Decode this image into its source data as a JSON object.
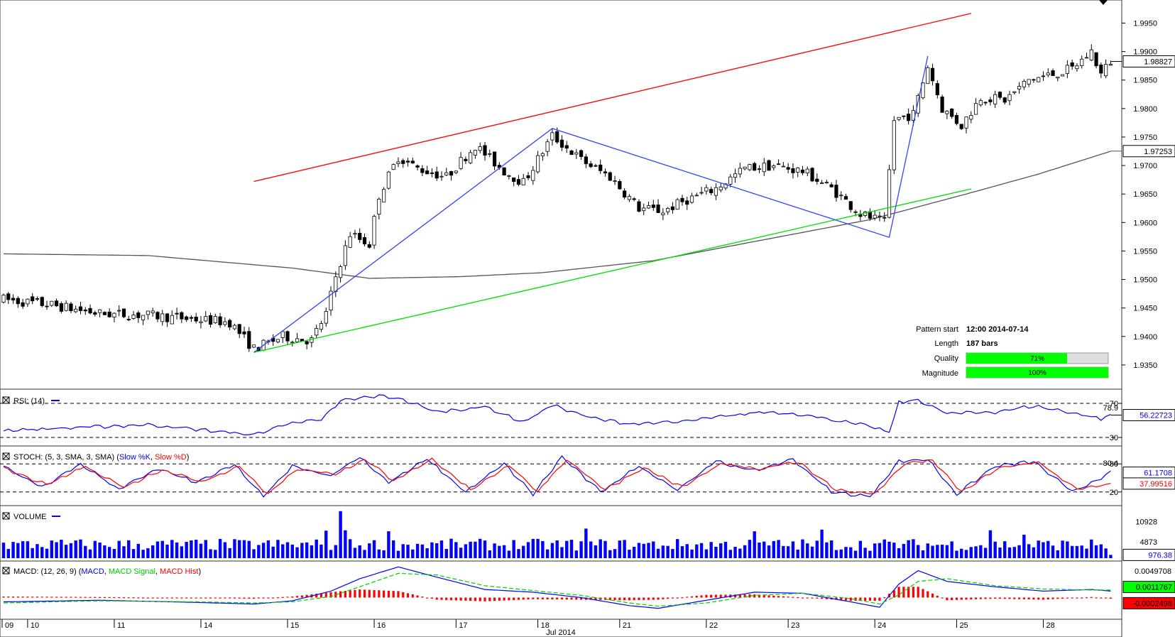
{
  "chart_data": [
    {
      "type": "candlestick",
      "panel": "price",
      "y_ticks": [
        "1.9950",
        "1.9900",
        "1.9850",
        "1.9800",
        "1.9750",
        "1.9700",
        "1.9650",
        "1.9600",
        "1.9550",
        "1.9500",
        "1.9450",
        "1.9400",
        "1.9350"
      ],
      "ylim": [
        1.9315,
        1.9983
      ],
      "last_price": "1.98827",
      "ma_value": "1.97253",
      "channel": {
        "resistance": {
          "from": {
            "bar": 52,
            "price": 1.9672
          },
          "to": {
            "bar": 187,
            "price": 1.996
          },
          "color": "#ff0000"
        },
        "support": {
          "from": {
            "bar": 52,
            "price": 1.9372
          },
          "to": {
            "bar": 187,
            "price": 1.9652
          },
          "color": "#00dd00"
        }
      },
      "zigzag": [
        {
          "bar": 52,
          "price": 1.9372
        },
        {
          "bar": 114,
          "price": 1.9765
        },
        {
          "bar": 184,
          "price": 1.9574
        },
        {
          "bar": 192,
          "price": 1.9892
        }
      ],
      "ma_path": [
        {
          "bar": 0,
          "price": 1.9545
        },
        {
          "bar": 30,
          "price": 1.9542
        },
        {
          "bar": 60,
          "price": 1.952
        },
        {
          "bar": 76,
          "price": 1.9502
        },
        {
          "bar": 95,
          "price": 1.9505
        },
        {
          "bar": 112,
          "price": 1.9512
        },
        {
          "bar": 135,
          "price": 1.9533
        },
        {
          "bar": 160,
          "price": 1.9573
        },
        {
          "bar": 180,
          "price": 1.9605
        },
        {
          "bar": 200,
          "price": 1.965
        },
        {
          "bar": 215,
          "price": 1.9685
        },
        {
          "bar": 230,
          "price": 1.9725
        }
      ],
      "price_path": [
        {
          "bar": 0,
          "price": 1.9465
        },
        {
          "bar": 10,
          "price": 1.9455
        },
        {
          "bar": 20,
          "price": 1.944
        },
        {
          "bar": 30,
          "price": 1.9437
        },
        {
          "bar": 40,
          "price": 1.943
        },
        {
          "bar": 47,
          "price": 1.9425
        },
        {
          "bar": 52,
          "price": 1.9378
        },
        {
          "bar": 58,
          "price": 1.94
        },
        {
          "bar": 64,
          "price": 1.9393
        },
        {
          "bar": 67,
          "price": 1.944
        },
        {
          "bar": 69,
          "price": 1.9505
        },
        {
          "bar": 72,
          "price": 1.958
        },
        {
          "bar": 76,
          "price": 1.9562
        },
        {
          "bar": 78,
          "price": 1.9648
        },
        {
          "bar": 82,
          "price": 1.9715
        },
        {
          "bar": 86,
          "price": 1.9695
        },
        {
          "bar": 92,
          "price": 1.968
        },
        {
          "bar": 98,
          "price": 1.9735
        },
        {
          "bar": 104,
          "price": 1.969
        },
        {
          "bar": 108,
          "price": 1.967
        },
        {
          "bar": 114,
          "price": 1.9752
        },
        {
          "bar": 120,
          "price": 1.971
        },
        {
          "bar": 126,
          "price": 1.968
        },
        {
          "bar": 132,
          "price": 1.9625
        },
        {
          "bar": 137,
          "price": 1.962
        },
        {
          "bar": 142,
          "price": 1.964
        },
        {
          "bar": 148,
          "price": 1.966
        },
        {
          "bar": 154,
          "price": 1.9695
        },
        {
          "bar": 160,
          "price": 1.97
        },
        {
          "bar": 166,
          "price": 1.969
        },
        {
          "bar": 172,
          "price": 1.966
        },
        {
          "bar": 178,
          "price": 1.9615
        },
        {
          "bar": 183,
          "price": 1.96
        },
        {
          "bar": 185,
          "price": 1.978
        },
        {
          "bar": 189,
          "price": 1.979
        },
        {
          "bar": 192,
          "price": 1.9875
        },
        {
          "bar": 195,
          "price": 1.98
        },
        {
          "bar": 199,
          "price": 1.977
        },
        {
          "bar": 203,
          "price": 1.982
        },
        {
          "bar": 208,
          "price": 1.9815
        },
        {
          "bar": 213,
          "price": 1.985
        },
        {
          "bar": 218,
          "price": 1.986
        },
        {
          "bar": 222,
          "price": 1.987
        },
        {
          "bar": 226,
          "price": 1.99
        },
        {
          "bar": 228,
          "price": 1.986
        },
        {
          "bar": 230,
          "price": 1.9883
        }
      ]
    },
    {
      "type": "line",
      "panel": "rsi",
      "title": "RSI: (14)",
      "levels": [
        {
          "label": "70",
          "value": 70
        },
        {
          "label": "30",
          "value": 30
        }
      ],
      "top_label": "78.9",
      "current": "56.22723",
      "ylim": [
        25,
        80
      ],
      "series": [
        {
          "color": "#0000ff",
          "x": [
            0,
            30,
            52,
            60,
            66,
            70,
            78,
            82,
            90,
            100,
            108,
            114,
            122,
            130,
            140,
            150,
            158,
            166,
            174,
            180,
            184,
            186,
            190,
            196,
            206,
            214,
            222,
            228,
            230
          ],
          "values": [
            38,
            45,
            33,
            48,
            50,
            73,
            79,
            76,
            60,
            66,
            48,
            68,
            53,
            46,
            48,
            55,
            60,
            57,
            49,
            43,
            36,
            71,
            74,
            58,
            60,
            67,
            59,
            52,
            56
          ]
        }
      ]
    },
    {
      "type": "line",
      "panel": "stoch",
      "title": "STOCH: (5, 3, SMA, 3, SMA)",
      "legend": [
        "Slow %K",
        "Slow %D"
      ],
      "levels": [
        {
          "label": "80",
          "value": 80
        },
        {
          "label": "20",
          "value": 20
        }
      ],
      "top_label": "80.4",
      "values_shown": [
        "61.1708",
        "37.99516"
      ],
      "ylim": [
        0,
        100
      ],
      "series": [
        {
          "name": "Slow %K",
          "color": "#0000ff",
          "x": [
            0,
            8,
            16,
            24,
            32,
            40,
            48,
            54,
            60,
            68,
            74,
            80,
            88,
            96,
            104,
            110,
            116,
            124,
            132,
            140,
            148,
            156,
            164,
            172,
            180,
            186,
            192,
            198,
            206,
            214,
            222,
            230
          ],
          "values": [
            75,
            30,
            80,
            25,
            70,
            40,
            78,
            10,
            75,
            55,
            95,
            40,
            90,
            20,
            80,
            15,
            95,
            20,
            75,
            25,
            85,
            65,
            90,
            20,
            10,
            85,
            90,
            15,
            75,
            85,
            20,
            61
          ]
        },
        {
          "name": "Slow %D",
          "color": "#ff0000",
          "x": [
            0,
            9,
            17,
            25,
            33,
            41,
            49,
            55,
            61,
            69,
            75,
            81,
            89,
            97,
            105,
            111,
            117,
            125,
            133,
            141,
            149,
            157,
            165,
            173,
            181,
            187,
            193,
            199,
            207,
            215,
            223,
            230
          ],
          "values": [
            70,
            35,
            75,
            30,
            68,
            42,
            75,
            15,
            70,
            58,
            90,
            45,
            88,
            25,
            78,
            20,
            90,
            25,
            72,
            30,
            80,
            68,
            85,
            25,
            15,
            80,
            88,
            20,
            72,
            83,
            25,
            38
          ]
        }
      ]
    },
    {
      "type": "bar",
      "panel": "volume",
      "title": "VOLUME",
      "y_ticks": [
        "10928",
        "4873"
      ],
      "current": "976.38",
      "ylim": [
        0,
        14800
      ],
      "series": [
        {
          "color": "#0000ff",
          "spikes": [
            {
              "bar": 70,
              "value": 14000
            },
            {
              "bar": 67,
              "value": 8200
            },
            {
              "bar": 71,
              "value": 8300
            },
            {
              "bar": 80,
              "value": 8000
            },
            {
              "bar": 121,
              "value": 8800
            },
            {
              "bar": 156,
              "value": 8000
            },
            {
              "bar": 170,
              "value": 8500
            },
            {
              "bar": 205,
              "value": 8300
            },
            {
              "bar": 212,
              "value": 7000
            }
          ],
          "base": 4000,
          "last": 976
        }
      ]
    },
    {
      "type": "line",
      "panel": "macd",
      "title": "MACD: (12, 26, 9)",
      "legend": [
        "MACD",
        "MACD Signal",
        "MACD Hist"
      ],
      "y_ticks": [
        "0.0049708"
      ],
      "values_shown": [
        "0.0011767",
        "-0.0002498"
      ],
      "ylim": [
        -0.0035,
        0.006
      ],
      "series": [
        {
          "name": "MACD",
          "color": "#0000ff",
          "x": [
            0,
            20,
            40,
            52,
            60,
            68,
            74,
            82,
            90,
            100,
            110,
            120,
            130,
            136,
            146,
            156,
            166,
            176,
            182,
            186,
            190,
            196,
            206,
            216,
            226,
            230
          ],
          "values": [
            -0.0008,
            -0.0005,
            -0.0009,
            -0.0012,
            -0.0006,
            0.0012,
            0.0035,
            0.0057,
            0.0038,
            0.0015,
            0.001,
            0.0,
            -0.0015,
            -0.002,
            -0.0005,
            0.001,
            0.0008,
            -0.0008,
            -0.0018,
            0.0025,
            0.005,
            0.003,
            0.002,
            0.0012,
            0.0015,
            0.0012
          ]
        },
        {
          "name": "MACD Signal",
          "color": "#00cc00",
          "x": [
            0,
            20,
            40,
            52,
            60,
            68,
            74,
            82,
            90,
            100,
            110,
            120,
            130,
            136,
            146,
            156,
            166,
            176,
            182,
            186,
            190,
            196,
            206,
            216,
            226,
            230
          ],
          "values": [
            -0.001,
            -0.0006,
            -0.0008,
            -0.001,
            -0.0008,
            0.0002,
            0.002,
            0.0045,
            0.0042,
            0.0022,
            0.0013,
            0.0004,
            -0.001,
            -0.0016,
            -0.001,
            0.0004,
            0.0008,
            -0.0002,
            -0.0012,
            0.0005,
            0.003,
            0.0035,
            0.0022,
            0.0016,
            0.0014,
            0.0014
          ]
        }
      ]
    }
  ],
  "x_labels": [
    {
      "label": "09",
      "bar": 0
    },
    {
      "label": "10",
      "bar": 5
    },
    {
      "label": "11",
      "bar": 23
    },
    {
      "label": "14",
      "bar": 41
    },
    {
      "label": "15",
      "bar": 59
    },
    {
      "label": "16",
      "bar": 77
    },
    {
      "label": "17",
      "bar": 94
    },
    {
      "label": "18",
      "bar": 111
    },
    {
      "label": "21",
      "bar": 128
    },
    {
      "label": "22",
      "bar": 146
    },
    {
      "label": "23",
      "bar": 163
    },
    {
      "label": "24",
      "bar": 181
    },
    {
      "label": "25",
      "bar": 198
    },
    {
      "label": "28",
      "bar": 216
    }
  ],
  "x_month_label": "Jul 2014",
  "pattern_info": {
    "start_label": "Pattern start",
    "start_value": "12:00 2014-07-14",
    "length_label": "Length",
    "length_value": "187 bars",
    "quality_label": "Quality",
    "quality_value": "71%",
    "quality_fraction": 0.71,
    "magnitude_label": "Magnitude",
    "magnitude_value": "100%",
    "magnitude_fraction": 1.0
  },
  "colors": {
    "resistance": "#ff0000",
    "support": "#00dd00",
    "zigzag": "#3344ff",
    "ma": "#555555",
    "candle_bull": "#ffffff",
    "candle_bear": "#000000",
    "rsi": "#0000ff",
    "stoch_k": "#0000ff",
    "stoch_d": "#ff0000",
    "volume": "#0000ff",
    "macd": "#0000ff",
    "macd_signal": "#00cc00",
    "macd_hist": "#ff0000",
    "bar_fill": "#00ff00",
    "bar_track": "#dddddd"
  }
}
